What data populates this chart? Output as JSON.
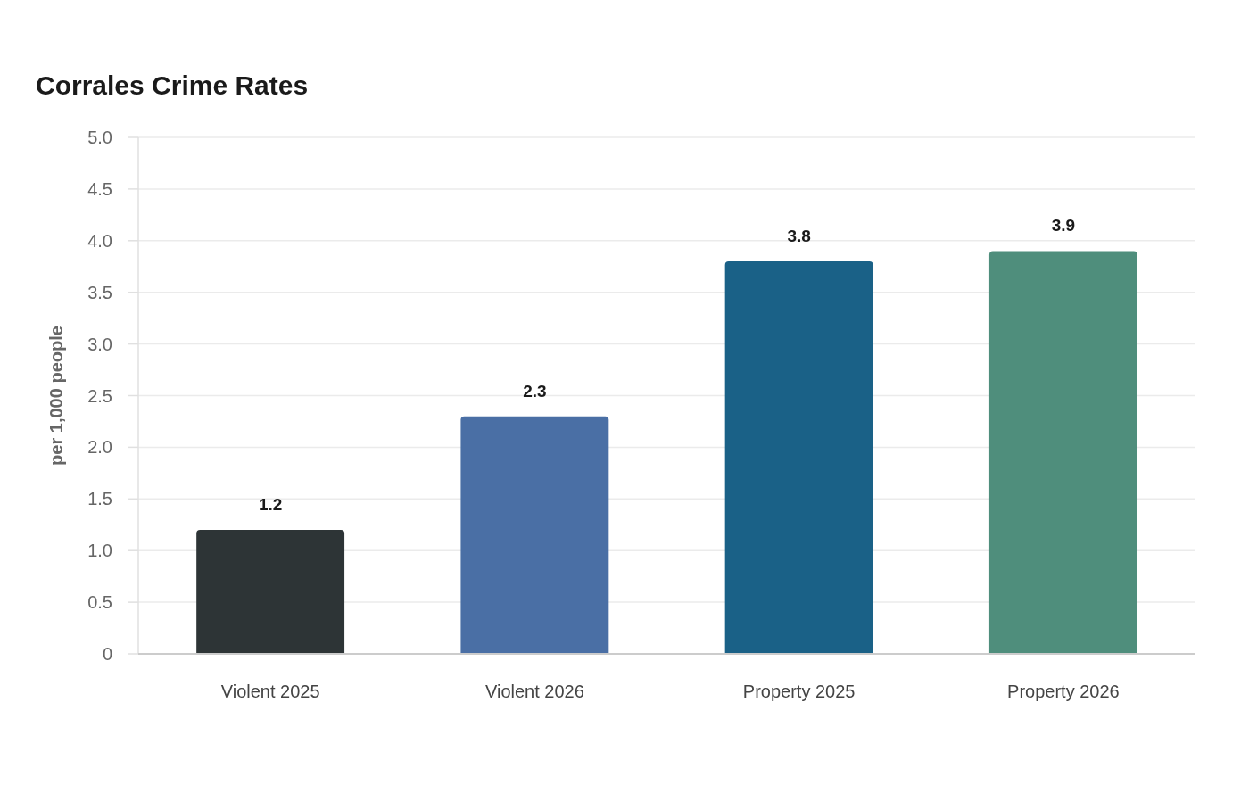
{
  "chart_data": {
    "type": "bar",
    "title": "Corrales Crime Rates",
    "ylabel": "per 1,000 people",
    "categories": [
      "Violent 2025",
      "Violent 2026",
      "Property 2025",
      "Property 2026"
    ],
    "values": [
      1.2,
      2.3,
      3.8,
      3.9
    ],
    "colors": [
      "#2d3436",
      "#4a6fa5",
      "#1a6187",
      "#4f8e7c"
    ],
    "ylim": [
      0,
      5
    ],
    "yticks": [
      {
        "value": 0,
        "label": "0"
      },
      {
        "value": 0.5,
        "label": "0.5"
      },
      {
        "value": 1,
        "label": "1.0"
      },
      {
        "value": 1.5,
        "label": "1.5"
      },
      {
        "value": 2,
        "label": "2.0"
      },
      {
        "value": 2.5,
        "label": "2.5"
      },
      {
        "value": 3,
        "label": "3.0"
      },
      {
        "value": 3.5,
        "label": "3.5"
      },
      {
        "value": 4,
        "label": "4.0"
      },
      {
        "value": 4.5,
        "label": "4.5"
      },
      {
        "value": 5,
        "label": "5.0"
      }
    ],
    "grid": "y",
    "data_labels": true
  }
}
